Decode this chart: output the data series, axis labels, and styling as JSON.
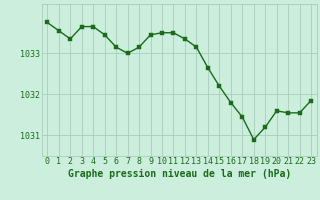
{
  "x": [
    0,
    1,
    2,
    3,
    4,
    5,
    6,
    7,
    8,
    9,
    10,
    11,
    12,
    13,
    14,
    15,
    16,
    17,
    18,
    19,
    20,
    21,
    22,
    23
  ],
  "y": [
    1033.75,
    1033.55,
    1033.35,
    1033.65,
    1033.65,
    1033.45,
    1033.15,
    1033.0,
    1033.15,
    1033.45,
    1033.5,
    1033.5,
    1033.35,
    1033.15,
    1032.65,
    1032.2,
    1031.8,
    1031.45,
    1030.9,
    1031.2,
    1031.6,
    1031.55,
    1031.55,
    1031.85
  ],
  "ylim": [
    1030.5,
    1034.2
  ],
  "yticks": [
    1031,
    1032,
    1033
  ],
  "xticks": [
    0,
    1,
    2,
    3,
    4,
    5,
    6,
    7,
    8,
    9,
    10,
    11,
    12,
    13,
    14,
    15,
    16,
    17,
    18,
    19,
    20,
    21,
    22,
    23
  ],
  "line_color": "#1a6b1a",
  "marker_color": "#1a6b1a",
  "bg_color": "#cceedd",
  "grid_color": "#aaccbb",
  "xlabel": "Graphe pression niveau de la mer (hPa)",
  "xlabel_color": "#1a6b1a",
  "xlabel_fontsize": 7.0,
  "tick_fontsize": 6.0,
  "tick_color": "#1a6b1a",
  "line_width": 1.0,
  "marker_size": 2.5,
  "xlim": [
    -0.5,
    23.5
  ]
}
